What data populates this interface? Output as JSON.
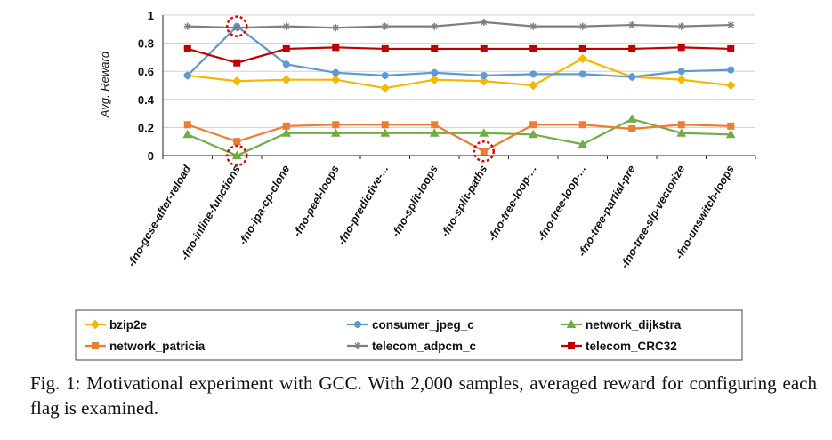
{
  "chart_data": {
    "type": "line",
    "ylabel": "Avg. Reward",
    "ylim": [
      0,
      1
    ],
    "yticks": [
      "0",
      "0.2",
      "0.4",
      "0.6",
      "0.8",
      "1"
    ],
    "grid": true,
    "categories": [
      "-fno-gcse-after-reload",
      "-fno-inline-functions",
      "-fno-ipa-cp-clone",
      "-fno-peel-loops",
      "-fno-predictive-...",
      "-fno-split-loops",
      "-fno-split-paths",
      "-fno-tree-loop-...",
      "-fno-tree-loop-...",
      "-fno-tree-partial-pre",
      "-fno-tree-slp-vectorize",
      "-fno-unswitch-loops"
    ],
    "series": [
      {
        "name": "bzip2e",
        "color": "#f5b800",
        "marker": "diamond",
        "values": [
          0.57,
          0.53,
          0.54,
          0.54,
          0.48,
          0.54,
          0.53,
          0.5,
          0.69,
          0.56,
          0.54,
          0.5
        ]
      },
      {
        "name": "consumer_jpeg_c",
        "color": "#5b9bd5",
        "marker": "circle",
        "values": [
          0.57,
          0.92,
          0.65,
          0.59,
          0.57,
          0.59,
          0.57,
          0.58,
          0.58,
          0.56,
          0.6,
          0.61
        ]
      },
      {
        "name": "network_dijkstra",
        "color": "#70ad47",
        "marker": "triangle",
        "values": [
          0.15,
          0.0,
          0.16,
          0.16,
          0.16,
          0.16,
          0.16,
          0.15,
          0.08,
          0.26,
          0.16,
          0.15
        ]
      },
      {
        "name": "network_patricia",
        "color": "#ed7d31",
        "marker": "square",
        "values": [
          0.22,
          0.1,
          0.21,
          0.22,
          0.22,
          0.22,
          0.03,
          0.22,
          0.22,
          0.19,
          0.22,
          0.21
        ]
      },
      {
        "name": "telecom_adpcm_c",
        "color": "#7f7f7f",
        "marker": "star",
        "values": [
          0.92,
          0.91,
          0.92,
          0.91,
          0.92,
          0.92,
          0.95,
          0.92,
          0.92,
          0.93,
          0.92,
          0.93
        ]
      },
      {
        "name": "telecom_CRC32",
        "color": "#c00000",
        "marker": "square",
        "values": [
          0.76,
          0.66,
          0.76,
          0.77,
          0.76,
          0.76,
          0.76,
          0.76,
          0.76,
          0.76,
          0.77,
          0.76
        ]
      }
    ],
    "highlights": [
      {
        "category_index": 1,
        "value": 0.92
      },
      {
        "category_index": 1,
        "value": 0.0
      },
      {
        "category_index": 6,
        "value": 0.03
      }
    ],
    "legend_position": "bottom"
  },
  "caption": "Fig. 1: Motivational experiment with GCC. With 2,000 samples, averaged reward for configuring each flag is examined."
}
